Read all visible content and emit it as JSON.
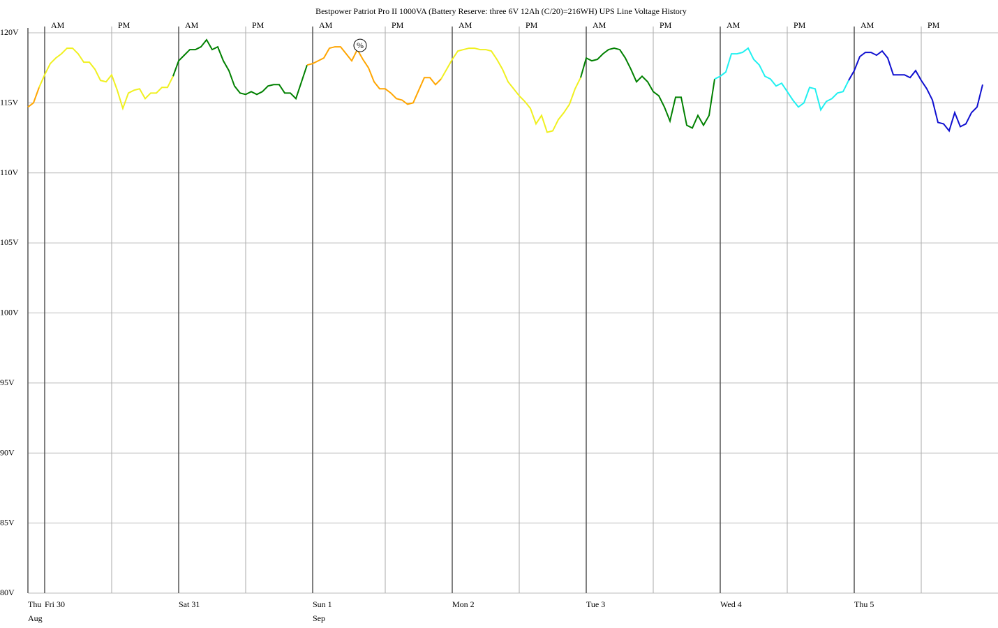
{
  "chart_data": {
    "type": "line",
    "title": "Bestpower Patriot Pro II 1000VA (Battery Reserve: three 6V 12Ah (C/20)=216WH) UPS Line Voltage History",
    "xlim": [
      -3,
      170.75
    ],
    "ylim": [
      80,
      120
    ],
    "yticks": [
      {
        "value": 80,
        "label": "80V"
      },
      {
        "value": 85,
        "label": "85V"
      },
      {
        "value": 90,
        "label": "90V"
      },
      {
        "value": 95,
        "label": "95V"
      },
      {
        "value": 100,
        "label": "100V"
      },
      {
        "value": 105,
        "label": "105V"
      },
      {
        "value": 110,
        "label": "110V"
      },
      {
        "value": 115,
        "label": "115V"
      },
      {
        "value": 120,
        "label": "120V"
      }
    ],
    "xticks": [
      {
        "value": -3,
        "label": "Thu"
      },
      {
        "value": 0,
        "label": "Fri 30"
      },
      {
        "value": 24,
        "label": "Sat 31"
      },
      {
        "value": 48,
        "label": "Sun 1"
      },
      {
        "value": 73,
        "label": "Mon 2"
      },
      {
        "value": 97,
        "label": "Tue 3"
      },
      {
        "value": 121,
        "label": "Wed 4"
      },
      {
        "value": 145,
        "label": "Thu 5"
      }
    ],
    "month_labels": [
      {
        "value": -3,
        "label": "Aug"
      },
      {
        "value": 48,
        "label": "Sep"
      }
    ],
    "top_ticks": [
      {
        "value": 0,
        "label": "AM"
      },
      {
        "value": 12,
        "label": "PM"
      },
      {
        "value": 24,
        "label": "AM"
      },
      {
        "value": 36,
        "label": "PM"
      },
      {
        "value": 48,
        "label": "AM"
      },
      {
        "value": 61,
        "label": "PM"
      },
      {
        "value": 73,
        "label": "AM"
      },
      {
        "value": 85,
        "label": "PM"
      },
      {
        "value": 97,
        "label": "AM"
      },
      {
        "value": 109,
        "label": "PM"
      },
      {
        "value": 121,
        "label": "AM"
      },
      {
        "value": 133,
        "label": "PM"
      },
      {
        "value": 145,
        "label": "AM"
      },
      {
        "value": 157,
        "label": "PM"
      }
    ],
    "grid": true,
    "annotations": [
      {
        "x": 56.5,
        "y": 119.1,
        "label": "%"
      }
    ],
    "series": [
      {
        "color": "#ffa500",
        "x": [
          -3,
          -2,
          -1
        ],
        "values": [
          114.7,
          115.0,
          116.1
        ]
      },
      {
        "color": "#f0f020",
        "x": [
          -1,
          0,
          1,
          2,
          3,
          4,
          5,
          6,
          7,
          8,
          9,
          10,
          11,
          12,
          13,
          14,
          15,
          16,
          17,
          18,
          19,
          20,
          21,
          22,
          23
        ],
        "values": [
          116.1,
          117.0,
          117.8,
          118.2,
          118.5,
          118.9,
          118.9,
          118.5,
          117.9,
          117.9,
          117.4,
          116.6,
          116.5,
          117.0,
          115.9,
          114.6,
          115.7,
          115.9,
          116.0,
          115.3,
          115.7,
          115.7,
          116.1,
          116.1,
          116.9
        ]
      },
      {
        "color": "#008000",
        "x": [
          23,
          24,
          25,
          26,
          27,
          28,
          29,
          30,
          31,
          32,
          33,
          34,
          35,
          36,
          37,
          38,
          39,
          40,
          41,
          42,
          43,
          44,
          45,
          46,
          47
        ],
        "values": [
          116.9,
          118.0,
          118.4,
          118.8,
          118.8,
          119.0,
          119.5,
          118.8,
          119.0,
          118.0,
          117.3,
          116.2,
          115.7,
          115.6,
          115.8,
          115.6,
          115.8,
          116.2,
          116.3,
          116.3,
          115.7,
          115.7,
          115.3,
          116.5,
          117.7
        ]
      },
      {
        "color": "#ffa500",
        "x": [
          47,
          48,
          49,
          50,
          51,
          52,
          53,
          54,
          55,
          56,
          57,
          58,
          59,
          60,
          61,
          62,
          63,
          64,
          65,
          66,
          67,
          68,
          69,
          70,
          71
        ],
        "values": [
          117.7,
          117.8,
          118.0,
          118.2,
          118.9,
          119.0,
          119.0,
          118.5,
          118.0,
          118.8,
          118.1,
          117.5,
          116.5,
          116.0,
          116.0,
          115.7,
          115.3,
          115.2,
          114.9,
          115.0,
          115.9,
          116.8,
          116.8,
          116.3,
          116.7
        ]
      },
      {
        "color": "#f0f020",
        "x": [
          71,
          72,
          73,
          74,
          75,
          76,
          77,
          78,
          79,
          80,
          81,
          82,
          83,
          84,
          85,
          86,
          87,
          88,
          89,
          90,
          91,
          92,
          93,
          94,
          95,
          96
        ],
        "values": [
          116.7,
          117.4,
          118.1,
          118.7,
          118.8,
          118.9,
          118.9,
          118.8,
          118.8,
          118.7,
          118.1,
          117.4,
          116.5,
          116.0,
          115.5,
          115.1,
          114.6,
          113.5,
          114.1,
          112.9,
          113.0,
          113.8,
          114.3,
          114.9,
          116.0,
          116.8
        ]
      },
      {
        "color": "#008000",
        "x": [
          96,
          97,
          98,
          99,
          100,
          101,
          102,
          103,
          104,
          105,
          106,
          107,
          108,
          109,
          110,
          111,
          112,
          113,
          114,
          115,
          116,
          117,
          118,
          119,
          120
        ],
        "values": [
          116.8,
          118.2,
          118.0,
          118.1,
          118.5,
          118.8,
          118.9,
          118.8,
          118.2,
          117.4,
          116.5,
          116.9,
          116.5,
          115.8,
          115.5,
          114.7,
          113.7,
          115.4,
          115.4,
          113.4,
          113.2,
          114.1,
          113.4,
          114.1,
          116.7
        ]
      },
      {
        "color": "#20f0f0",
        "x": [
          120,
          121,
          122,
          123,
          124,
          125,
          126,
          127,
          128,
          129,
          130,
          131,
          132,
          133,
          134,
          135,
          136,
          137,
          138,
          139,
          140,
          141,
          142,
          143,
          144
        ],
        "values": [
          116.7,
          116.9,
          117.2,
          118.5,
          118.5,
          118.6,
          118.9,
          118.1,
          117.7,
          116.9,
          116.7,
          116.2,
          116.4,
          115.8,
          115.2,
          114.7,
          115.0,
          116.1,
          116.0,
          114.5,
          115.1,
          115.3,
          115.7,
          115.8,
          116.6
        ]
      },
      {
        "color": "#1010d0",
        "x": [
          144,
          145,
          146,
          147,
          148,
          149,
          150,
          151,
          152,
          153,
          154,
          155,
          156,
          157,
          158,
          159,
          160,
          161,
          162,
          163,
          164,
          165,
          166,
          167,
          168
        ],
        "values": [
          116.6,
          117.3,
          118.3,
          118.6,
          118.6,
          118.4,
          118.7,
          118.2,
          117.0,
          117.0,
          117.0,
          116.8,
          117.3,
          116.6,
          116.0,
          115.2,
          113.6,
          113.5,
          113.0,
          114.3,
          113.3,
          113.5,
          114.3,
          114.7,
          116.3
        ]
      }
    ]
  }
}
